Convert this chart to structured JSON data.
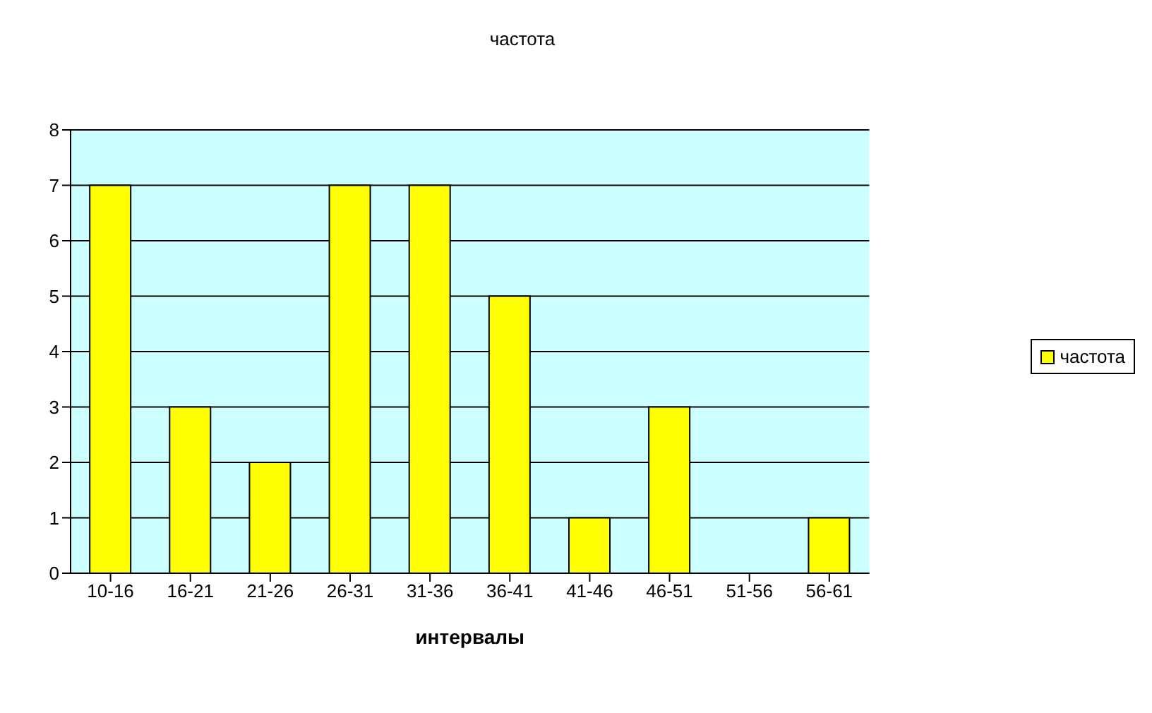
{
  "chart_data": {
    "type": "bar",
    "title": "частота",
    "xlabel": "интервалы",
    "categories": [
      "10-16",
      "16-21",
      "21-26",
      "26-31",
      "31-36",
      "36-41",
      "41-46",
      "46-51",
      "51-56",
      "56-61"
    ],
    "series": [
      {
        "name": "частота",
        "color": "#ffff00",
        "values": [
          7,
          3,
          2,
          7,
          7,
          5,
          1,
          3,
          0,
          1
        ]
      }
    ],
    "ylim": [
      0,
      8
    ],
    "yticks": [
      0,
      1,
      2,
      3,
      4,
      5,
      6,
      7,
      8
    ],
    "grid": "y",
    "legend": "right"
  }
}
